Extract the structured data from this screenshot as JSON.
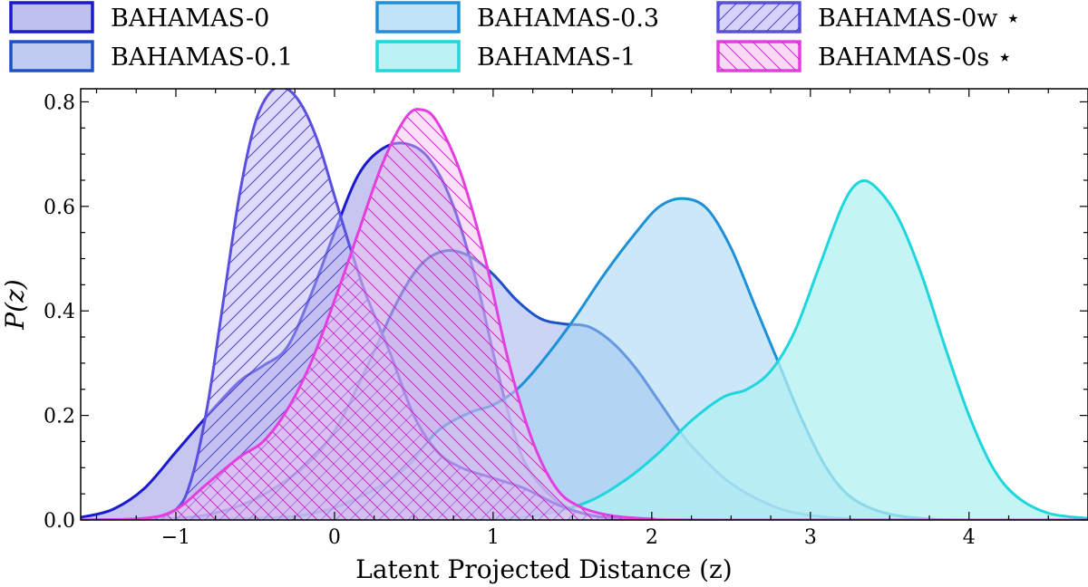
{
  "chart_data": {
    "type": "area",
    "title": "",
    "xlabel": "Latent Projected Distance (z)",
    "ylabel": "P(z)",
    "xlim": [
      -1.6,
      4.75
    ],
    "ylim": [
      0,
      0.825
    ],
    "xticks": [
      -1,
      0,
      1,
      2,
      3,
      4
    ],
    "yticks": [
      0.0,
      0.2,
      0.4,
      0.6,
      0.8
    ],
    "legend_position": "top",
    "series": [
      {
        "name": "BAHAMAS-0",
        "color": "#1a1ad0",
        "fill": "#bcbcef",
        "fill_opacity": 0.85,
        "hatch": "none",
        "points": [
          [
            -1.6,
            0.005
          ],
          [
            -1.4,
            0.02
          ],
          [
            -1.2,
            0.06
          ],
          [
            -1.0,
            0.13
          ],
          [
            -0.8,
            0.2
          ],
          [
            -0.6,
            0.265
          ],
          [
            -0.45,
            0.295
          ],
          [
            -0.3,
            0.33
          ],
          [
            -0.15,
            0.43
          ],
          [
            0.0,
            0.55
          ],
          [
            0.15,
            0.66
          ],
          [
            0.3,
            0.71
          ],
          [
            0.45,
            0.72
          ],
          [
            0.6,
            0.69
          ],
          [
            0.75,
            0.6
          ],
          [
            0.9,
            0.45
          ],
          [
            1.0,
            0.32
          ],
          [
            1.1,
            0.2
          ],
          [
            1.2,
            0.11
          ],
          [
            1.35,
            0.05
          ],
          [
            1.5,
            0.02
          ],
          [
            1.7,
            0.007
          ],
          [
            2.0,
            0.002
          ],
          [
            2.5,
            0.0
          ],
          [
            4.75,
            0.0
          ]
        ]
      },
      {
        "name": "BAHAMAS-0.1",
        "color": "#1e50c8",
        "fill": "#8aa0e6",
        "fill_opacity": 0.45,
        "hatch": "none",
        "points": [
          [
            -1.6,
            0.0
          ],
          [
            -1.1,
            0.002
          ],
          [
            -0.8,
            0.01
          ],
          [
            -0.5,
            0.04
          ],
          [
            -0.2,
            0.1
          ],
          [
            0.0,
            0.17
          ],
          [
            0.2,
            0.29
          ],
          [
            0.4,
            0.42
          ],
          [
            0.55,
            0.49
          ],
          [
            0.7,
            0.515
          ],
          [
            0.85,
            0.505
          ],
          [
            1.0,
            0.47
          ],
          [
            1.15,
            0.42
          ],
          [
            1.3,
            0.385
          ],
          [
            1.45,
            0.375
          ],
          [
            1.6,
            0.37
          ],
          [
            1.75,
            0.34
          ],
          [
            1.9,
            0.29
          ],
          [
            2.05,
            0.225
          ],
          [
            2.2,
            0.16
          ],
          [
            2.35,
            0.11
          ],
          [
            2.5,
            0.07
          ],
          [
            2.7,
            0.035
          ],
          [
            2.9,
            0.014
          ],
          [
            3.2,
            0.003
          ],
          [
            3.5,
            0.0
          ],
          [
            4.75,
            0.0
          ]
        ]
      },
      {
        "name": "BAHAMAS-0.3",
        "color": "#1e90d8",
        "fill": "#a0d4f2",
        "fill_opacity": 0.55,
        "hatch": "none",
        "points": [
          [
            -1.6,
            0.0
          ],
          [
            -0.5,
            0.003
          ],
          [
            -0.1,
            0.015
          ],
          [
            0.2,
            0.05
          ],
          [
            0.45,
            0.1
          ],
          [
            0.65,
            0.17
          ],
          [
            0.85,
            0.205
          ],
          [
            1.0,
            0.22
          ],
          [
            1.15,
            0.25
          ],
          [
            1.3,
            0.3
          ],
          [
            1.5,
            0.38
          ],
          [
            1.7,
            0.47
          ],
          [
            1.9,
            0.55
          ],
          [
            2.05,
            0.6
          ],
          [
            2.2,
            0.615
          ],
          [
            2.35,
            0.595
          ],
          [
            2.5,
            0.52
          ],
          [
            2.65,
            0.41
          ],
          [
            2.8,
            0.3
          ],
          [
            2.95,
            0.19
          ],
          [
            3.1,
            0.1
          ],
          [
            3.25,
            0.045
          ],
          [
            3.45,
            0.015
          ],
          [
            3.7,
            0.003
          ],
          [
            4.0,
            0.0
          ],
          [
            4.75,
            0.0
          ]
        ]
      },
      {
        "name": "BAHAMAS-1",
        "color": "#1ed6dc",
        "fill": "#b2f0f2",
        "fill_opacity": 0.75,
        "hatch": "none",
        "points": [
          [
            -1.6,
            0.0
          ],
          [
            0.5,
            0.0
          ],
          [
            1.0,
            0.002
          ],
          [
            1.3,
            0.01
          ],
          [
            1.6,
            0.035
          ],
          [
            1.85,
            0.08
          ],
          [
            2.05,
            0.13
          ],
          [
            2.25,
            0.19
          ],
          [
            2.45,
            0.235
          ],
          [
            2.6,
            0.25
          ],
          [
            2.75,
            0.285
          ],
          [
            2.9,
            0.36
          ],
          [
            3.05,
            0.48
          ],
          [
            3.2,
            0.6
          ],
          [
            3.3,
            0.645
          ],
          [
            3.4,
            0.64
          ],
          [
            3.55,
            0.58
          ],
          [
            3.7,
            0.47
          ],
          [
            3.85,
            0.33
          ],
          [
            4.0,
            0.2
          ],
          [
            4.15,
            0.1
          ],
          [
            4.3,
            0.045
          ],
          [
            4.5,
            0.013
          ],
          [
            4.75,
            0.003
          ]
        ]
      },
      {
        "name": "BAHAMAS-0w ⋆",
        "color": "#5a50e0",
        "fill": "#c2bcf2",
        "fill_opacity": 0.55,
        "hatch": "diag-right",
        "points": [
          [
            -1.6,
            0.0
          ],
          [
            -1.2,
            0.003
          ],
          [
            -1.0,
            0.02
          ],
          [
            -0.9,
            0.08
          ],
          [
            -0.8,
            0.22
          ],
          [
            -0.7,
            0.42
          ],
          [
            -0.6,
            0.62
          ],
          [
            -0.5,
            0.76
          ],
          [
            -0.4,
            0.82
          ],
          [
            -0.3,
            0.825
          ],
          [
            -0.2,
            0.79
          ],
          [
            -0.1,
            0.72
          ],
          [
            0.0,
            0.62
          ],
          [
            0.1,
            0.52
          ],
          [
            0.2,
            0.43
          ],
          [
            0.35,
            0.32
          ],
          [
            0.5,
            0.2
          ],
          [
            0.65,
            0.13
          ],
          [
            0.8,
            0.1
          ],
          [
            1.0,
            0.08
          ],
          [
            1.2,
            0.06
          ],
          [
            1.4,
            0.03
          ],
          [
            1.6,
            0.01
          ],
          [
            1.8,
            0.002
          ],
          [
            2.0,
            0.0
          ],
          [
            4.75,
            0.0
          ]
        ]
      },
      {
        "name": "BAHAMAS-0s ⋆",
        "color": "#e43ee0",
        "fill": "#f4c0f0",
        "fill_opacity": 0.5,
        "hatch": "diag-left",
        "points": [
          [
            -1.6,
            0.0
          ],
          [
            -1.2,
            0.003
          ],
          [
            -1.0,
            0.02
          ],
          [
            -0.8,
            0.07
          ],
          [
            -0.6,
            0.12
          ],
          [
            -0.45,
            0.15
          ],
          [
            -0.3,
            0.21
          ],
          [
            -0.15,
            0.3
          ],
          [
            0.0,
            0.42
          ],
          [
            0.15,
            0.55
          ],
          [
            0.3,
            0.68
          ],
          [
            0.45,
            0.77
          ],
          [
            0.55,
            0.785
          ],
          [
            0.65,
            0.76
          ],
          [
            0.8,
            0.66
          ],
          [
            0.95,
            0.5
          ],
          [
            1.1,
            0.3
          ],
          [
            1.25,
            0.15
          ],
          [
            1.4,
            0.06
          ],
          [
            1.55,
            0.025
          ],
          [
            1.75,
            0.008
          ],
          [
            2.0,
            0.002
          ],
          [
            2.3,
            0.0
          ],
          [
            4.75,
            0.0
          ]
        ]
      }
    ]
  }
}
